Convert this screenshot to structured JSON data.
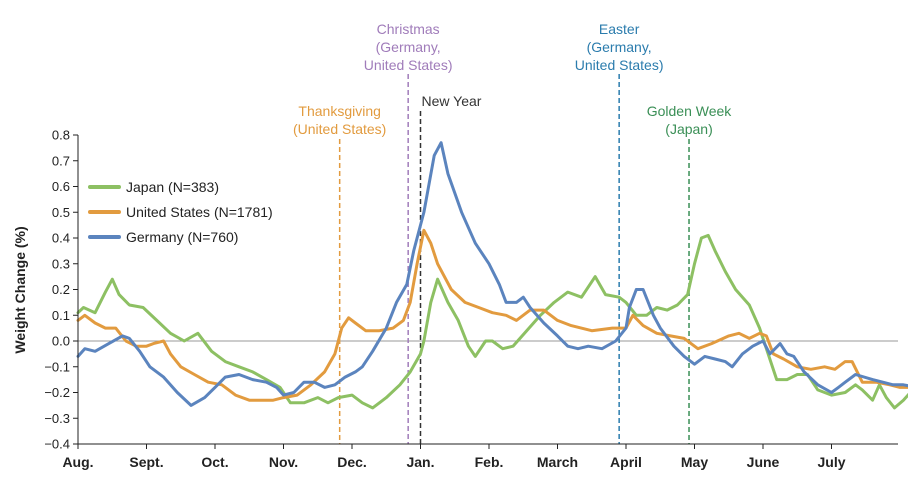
{
  "chart_data": {
    "type": "line",
    "ylabel": "Weight Change (%)",
    "xlabel": "",
    "ylim": [
      -0.4,
      0.8
    ],
    "yticks": [
      0.8,
      0.7,
      0.6,
      0.5,
      0.4,
      0.3,
      0.2,
      0.1,
      0.0,
      -0.1,
      -0.2,
      -0.3,
      -0.4
    ],
    "ytick_labels": [
      "0.8",
      "0.7",
      "0.6",
      "0.5",
      "0.4",
      "0.3",
      "0.2",
      "0.1",
      "0.0",
      "−0.1",
      "−0.2",
      "−0.3",
      "−0.4"
    ],
    "xlim": [
      0,
      12
    ],
    "x_unit": "months since Aug. 1",
    "month_ticks": [
      {
        "x": 0,
        "label": "Aug."
      },
      {
        "x": 1,
        "label": "Sept."
      },
      {
        "x": 2,
        "label": "Oct."
      },
      {
        "x": 3,
        "label": "Nov."
      },
      {
        "x": 4,
        "label": "Dec."
      },
      {
        "x": 5,
        "label": "Jan."
      },
      {
        "x": 6,
        "label": "Feb."
      },
      {
        "x": 7,
        "label": "March"
      },
      {
        "x": 8,
        "label": "April"
      },
      {
        "x": 9,
        "label": "May"
      },
      {
        "x": 10,
        "label": "June"
      },
      {
        "x": 11,
        "label": "July"
      }
    ],
    "legend_position": "upper-left",
    "series": [
      {
        "name": "Japan (N=383)",
        "color": "#8dc063",
        "points": [
          [
            0,
            0.11
          ],
          [
            0.08,
            0.13
          ],
          [
            0.25,
            0.11
          ],
          [
            0.4,
            0.19
          ],
          [
            0.5,
            0.24
          ],
          [
            0.6,
            0.18
          ],
          [
            0.75,
            0.14
          ],
          [
            0.95,
            0.13
          ],
          [
            1.15,
            0.08
          ],
          [
            1.35,
            0.03
          ],
          [
            1.55,
            0.0
          ],
          [
            1.75,
            0.03
          ],
          [
            1.95,
            -0.04
          ],
          [
            2.15,
            -0.08
          ],
          [
            2.35,
            -0.1
          ],
          [
            2.55,
            -0.12
          ],
          [
            2.75,
            -0.15
          ],
          [
            2.95,
            -0.18
          ],
          [
            3.1,
            -0.24
          ],
          [
            3.3,
            -0.24
          ],
          [
            3.5,
            -0.22
          ],
          [
            3.65,
            -0.24
          ],
          [
            3.8,
            -0.22
          ],
          [
            4.0,
            -0.21
          ],
          [
            4.15,
            -0.24
          ],
          [
            4.3,
            -0.26
          ],
          [
            4.5,
            -0.22
          ],
          [
            4.7,
            -0.17
          ],
          [
            4.85,
            -0.12
          ],
          [
            5.0,
            -0.05
          ],
          [
            5.05,
            0.0
          ],
          [
            5.15,
            0.15
          ],
          [
            5.25,
            0.24
          ],
          [
            5.4,
            0.15
          ],
          [
            5.55,
            0.08
          ],
          [
            5.7,
            -0.02
          ],
          [
            5.8,
            -0.06
          ],
          [
            5.95,
            0.0
          ],
          [
            6.05,
            0.0
          ],
          [
            6.2,
            -0.03
          ],
          [
            6.35,
            -0.02
          ],
          [
            6.55,
            0.04
          ],
          [
            6.75,
            0.1
          ],
          [
            6.95,
            0.15
          ],
          [
            7.15,
            0.19
          ],
          [
            7.35,
            0.17
          ],
          [
            7.55,
            0.25
          ],
          [
            7.7,
            0.18
          ],
          [
            7.9,
            0.17
          ],
          [
            8.0,
            0.15
          ],
          [
            8.15,
            0.1
          ],
          [
            8.3,
            0.1
          ],
          [
            8.45,
            0.13
          ],
          [
            8.6,
            0.12
          ],
          [
            8.75,
            0.14
          ],
          [
            8.9,
            0.18
          ],
          [
            9.0,
            0.3
          ],
          [
            9.1,
            0.4
          ],
          [
            9.2,
            0.41
          ],
          [
            9.3,
            0.35
          ],
          [
            9.45,
            0.27
          ],
          [
            9.6,
            0.2
          ],
          [
            9.8,
            0.14
          ],
          [
            9.95,
            0.05
          ],
          [
            10.05,
            -0.03
          ],
          [
            10.2,
            -0.15
          ],
          [
            10.35,
            -0.15
          ],
          [
            10.5,
            -0.13
          ],
          [
            10.65,
            -0.13
          ],
          [
            10.8,
            -0.19
          ],
          [
            11.0,
            -0.21
          ],
          [
            11.2,
            -0.2
          ],
          [
            11.35,
            -0.17
          ],
          [
            11.45,
            -0.19
          ],
          [
            11.6,
            -0.23
          ],
          [
            11.7,
            -0.17
          ],
          [
            11.8,
            -0.22
          ],
          [
            11.92,
            -0.26
          ],
          [
            12.05,
            -0.23
          ],
          [
            12.15,
            -0.2
          ],
          [
            12.25,
            -0.15
          ]
        ]
      },
      {
        "name": "United States (N=1781)",
        "color": "#e29b3f",
        "points": [
          [
            0,
            0.08
          ],
          [
            0.1,
            0.1
          ],
          [
            0.25,
            0.07
          ],
          [
            0.4,
            0.05
          ],
          [
            0.55,
            0.05
          ],
          [
            0.7,
            0.0
          ],
          [
            0.85,
            -0.02
          ],
          [
            1.0,
            -0.02
          ],
          [
            1.1,
            -0.01
          ],
          [
            1.25,
            0.0
          ],
          [
            1.35,
            -0.05
          ],
          [
            1.5,
            -0.1
          ],
          [
            1.7,
            -0.13
          ],
          [
            1.9,
            -0.16
          ],
          [
            2.1,
            -0.17
          ],
          [
            2.3,
            -0.21
          ],
          [
            2.5,
            -0.23
          ],
          [
            2.7,
            -0.23
          ],
          [
            2.85,
            -0.23
          ],
          [
            3.0,
            -0.22
          ],
          [
            3.2,
            -0.21
          ],
          [
            3.4,
            -0.17
          ],
          [
            3.6,
            -0.12
          ],
          [
            3.75,
            -0.05
          ],
          [
            3.85,
            0.05
          ],
          [
            3.95,
            0.09
          ],
          [
            4.05,
            0.07
          ],
          [
            4.2,
            0.04
          ],
          [
            4.4,
            0.04
          ],
          [
            4.6,
            0.05
          ],
          [
            4.75,
            0.08
          ],
          [
            4.85,
            0.15
          ],
          [
            4.95,
            0.3
          ],
          [
            5.05,
            0.43
          ],
          [
            5.15,
            0.38
          ],
          [
            5.25,
            0.3
          ],
          [
            5.45,
            0.2
          ],
          [
            5.65,
            0.15
          ],
          [
            5.85,
            0.13
          ],
          [
            6.05,
            0.11
          ],
          [
            6.25,
            0.1
          ],
          [
            6.4,
            0.08
          ],
          [
            6.6,
            0.12
          ],
          [
            6.8,
            0.12
          ],
          [
            7.0,
            0.08
          ],
          [
            7.2,
            0.06
          ],
          [
            7.5,
            0.04
          ],
          [
            7.8,
            0.05
          ],
          [
            8.0,
            0.05
          ],
          [
            8.1,
            0.1
          ],
          [
            8.25,
            0.06
          ],
          [
            8.45,
            0.03
          ],
          [
            8.65,
            0.02
          ],
          [
            8.85,
            0.01
          ],
          [
            9.05,
            -0.03
          ],
          [
            9.25,
            -0.01
          ],
          [
            9.5,
            0.02
          ],
          [
            9.65,
            0.03
          ],
          [
            9.8,
            0.01
          ],
          [
            9.95,
            0.03
          ],
          [
            10.05,
            0.02
          ],
          [
            10.15,
            -0.05
          ],
          [
            10.3,
            -0.07
          ],
          [
            10.5,
            -0.1
          ],
          [
            10.7,
            -0.11
          ],
          [
            10.9,
            -0.1
          ],
          [
            11.05,
            -0.11
          ],
          [
            11.2,
            -0.08
          ],
          [
            11.3,
            -0.08
          ],
          [
            11.45,
            -0.16
          ],
          [
            11.65,
            -0.16
          ],
          [
            11.85,
            -0.17
          ],
          [
            12.0,
            -0.18
          ],
          [
            12.15,
            -0.18
          ],
          [
            12.25,
            -0.17
          ]
        ]
      },
      {
        "name": "Germany (N=760)",
        "color": "#5b84be",
        "points": [
          [
            0,
            -0.06
          ],
          [
            0.1,
            -0.03
          ],
          [
            0.25,
            -0.04
          ],
          [
            0.45,
            -0.01
          ],
          [
            0.65,
            0.02
          ],
          [
            0.75,
            0.01
          ],
          [
            0.9,
            -0.04
          ],
          [
            1.05,
            -0.1
          ],
          [
            1.25,
            -0.14
          ],
          [
            1.45,
            -0.2
          ],
          [
            1.65,
            -0.25
          ],
          [
            1.85,
            -0.22
          ],
          [
            2.0,
            -0.18
          ],
          [
            2.15,
            -0.14
          ],
          [
            2.35,
            -0.13
          ],
          [
            2.55,
            -0.15
          ],
          [
            2.75,
            -0.16
          ],
          [
            2.9,
            -0.18
          ],
          [
            3.0,
            -0.21
          ],
          [
            3.15,
            -0.2
          ],
          [
            3.3,
            -0.16
          ],
          [
            3.45,
            -0.16
          ],
          [
            3.6,
            -0.18
          ],
          [
            3.75,
            -0.17
          ],
          [
            3.9,
            -0.14
          ],
          [
            4.05,
            -0.12
          ],
          [
            4.15,
            -0.1
          ],
          [
            4.3,
            -0.04
          ],
          [
            4.5,
            0.05
          ],
          [
            4.65,
            0.15
          ],
          [
            4.8,
            0.22
          ],
          [
            4.9,
            0.35
          ],
          [
            5.05,
            0.5
          ],
          [
            5.2,
            0.72
          ],
          [
            5.3,
            0.77
          ],
          [
            5.4,
            0.65
          ],
          [
            5.6,
            0.5
          ],
          [
            5.8,
            0.38
          ],
          [
            6.0,
            0.3
          ],
          [
            6.15,
            0.22
          ],
          [
            6.25,
            0.15
          ],
          [
            6.4,
            0.15
          ],
          [
            6.5,
            0.17
          ],
          [
            6.6,
            0.13
          ],
          [
            6.8,
            0.07
          ],
          [
            7.0,
            0.02
          ],
          [
            7.15,
            -0.02
          ],
          [
            7.3,
            -0.03
          ],
          [
            7.45,
            -0.02
          ],
          [
            7.65,
            -0.03
          ],
          [
            7.85,
            0.0
          ],
          [
            8.0,
            0.05
          ],
          [
            8.05,
            0.13
          ],
          [
            8.15,
            0.2
          ],
          [
            8.25,
            0.2
          ],
          [
            8.4,
            0.1
          ],
          [
            8.5,
            0.05
          ],
          [
            8.7,
            -0.02
          ],
          [
            8.85,
            -0.06
          ],
          [
            9.0,
            -0.09
          ],
          [
            9.15,
            -0.06
          ],
          [
            9.3,
            -0.07
          ],
          [
            9.45,
            -0.08
          ],
          [
            9.55,
            -0.1
          ],
          [
            9.7,
            -0.05
          ],
          [
            9.85,
            -0.02
          ],
          [
            10.0,
            0.0
          ],
          [
            10.1,
            -0.05
          ],
          [
            10.25,
            -0.01
          ],
          [
            10.35,
            -0.05
          ],
          [
            10.45,
            -0.06
          ],
          [
            10.6,
            -0.12
          ],
          [
            10.8,
            -0.17
          ],
          [
            11.0,
            -0.2
          ],
          [
            11.1,
            -0.18
          ],
          [
            11.2,
            -0.16
          ],
          [
            11.35,
            -0.13
          ],
          [
            11.6,
            -0.15
          ],
          [
            11.75,
            -0.16
          ],
          [
            11.9,
            -0.17
          ],
          [
            12.05,
            -0.17
          ],
          [
            12.25,
            -0.18
          ]
        ]
      }
    ],
    "events": [
      {
        "name": "thanksgiving",
        "x": 3.82,
        "lines": [
          "Thanksgiving",
          "(United States)"
        ],
        "color": "#e29b3f"
      },
      {
        "name": "christmas",
        "x": 4.82,
        "lines": [
          "Christmas",
          "(Germany,",
          "United States)"
        ],
        "color": "#a07cba"
      },
      {
        "name": "new-year",
        "x": 5.0,
        "lines": [
          "New Year"
        ],
        "color": "#333333"
      },
      {
        "name": "easter",
        "x": 7.9,
        "lines": [
          "Easter",
          "(Germany,",
          "United States)"
        ],
        "color": "#2b7cad"
      },
      {
        "name": "golden-week",
        "x": 8.92,
        "lines": [
          "Golden Week",
          "(Japan)"
        ],
        "color": "#3a8f56"
      }
    ],
    "zero_line": true
  }
}
